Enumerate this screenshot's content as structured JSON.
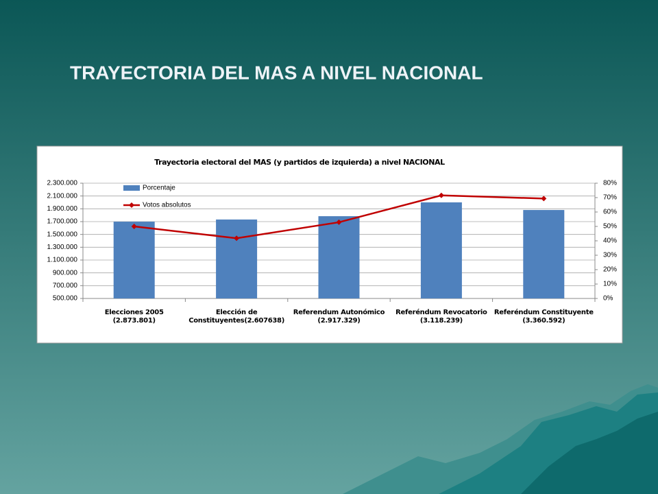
{
  "slide_title": "TRAYECTORIA DEL MAS A NIVEL NACIONAL",
  "chart_data": {
    "type": "bar",
    "title": "Trayectoria electoral del MAS (y partidos de izquierda) a nivel NACIONAL",
    "categories": [
      "Elecciones 2005 (2.873.801)",
      "Elección de\nConstituyentes(2.607638)",
      "Referendum Autonómico\n(2.917.329)",
      "Referéndum Revocatorio\n(3.118.239)",
      "Referéndum Constituyente\n(3.360.592)"
    ],
    "series": [
      {
        "name": "Porcentaje",
        "color": "#4f81bd",
        "axis": "y2",
        "values": [
          53.3,
          54.8,
          57.1,
          66.7,
          61.4
        ]
      },
      {
        "name": "Votos absolutos",
        "color": "#c00000",
        "type": "line",
        "values": [
          1625000,
          1440000,
          1690000,
          2110000,
          2060000
        ]
      }
    ],
    "ylim": [
      500000,
      2300000
    ],
    "yticks": [
      {
        "value": 500000,
        "label": "500.000"
      },
      {
        "value": 700000,
        "label": "700.000"
      },
      {
        "value": 900000,
        "label": "900.000"
      },
      {
        "value": 1100000,
        "label": "1.100.000"
      },
      {
        "value": 1300000,
        "label": "1.300.000"
      },
      {
        "value": 1500000,
        "label": "1.500.000"
      },
      {
        "value": 1700000,
        "label": "1.700.000"
      },
      {
        "value": 1900000,
        "label": "1.900.000"
      },
      {
        "value": 2100000,
        "label": "2.100.000"
      },
      {
        "value": 2300000,
        "label": "2.300.000"
      }
    ],
    "y2lim": [
      0,
      80
    ],
    "y2ticks": [
      {
        "value": 0,
        "label": "0%"
      },
      {
        "value": 10,
        "label": "10%"
      },
      {
        "value": 20,
        "label": "20%"
      },
      {
        "value": 30,
        "label": "30%"
      },
      {
        "value": 40,
        "label": "40%"
      },
      {
        "value": 50,
        "label": "50%"
      },
      {
        "value": 60,
        "label": "60%"
      },
      {
        "value": 70,
        "label": "70%"
      },
      {
        "value": 80,
        "label": "80%"
      }
    ],
    "grid": true,
    "legend": "top-left"
  }
}
